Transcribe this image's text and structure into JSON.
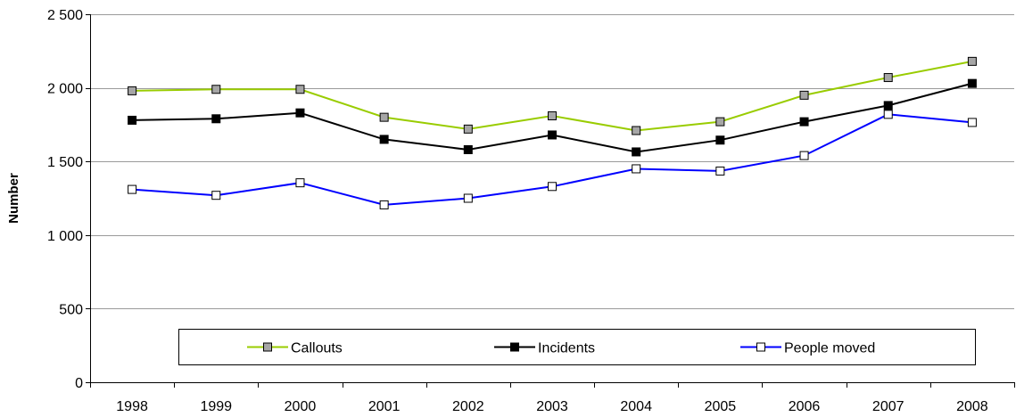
{
  "chart_data": {
    "type": "line",
    "title": "",
    "xlabel": "",
    "ylabel": "Number",
    "x": [
      "1998",
      "1999",
      "2000",
      "2001",
      "2002",
      "2003",
      "2004",
      "2005",
      "2006",
      "2007",
      "2008"
    ],
    "ylim": [
      0,
      2500
    ],
    "yticks": [
      0,
      500,
      1000,
      1500,
      2000,
      2500
    ],
    "ytick_labels": [
      "0",
      "500",
      "1 000",
      "1 500",
      "2 000",
      "2 500"
    ],
    "grid": true,
    "legend_position": "bottom-center",
    "series": [
      {
        "name": "Callouts",
        "values": [
          1980,
          1990,
          1990,
          1800,
          1720,
          1810,
          1710,
          1770,
          1950,
          2070,
          2180
        ],
        "line_color": "#99cc00",
        "marker_fill": "#a6a6a6",
        "marker_stroke": "#000000"
      },
      {
        "name": "Incidents",
        "values": [
          1780,
          1790,
          1830,
          1650,
          1580,
          1680,
          1565,
          1645,
          1770,
          1880,
          2030
        ],
        "line_color": "#000000",
        "marker_fill": "#000000",
        "marker_stroke": "#000000"
      },
      {
        "name": "People moved",
        "values": [
          1310,
          1270,
          1355,
          1205,
          1250,
          1330,
          1450,
          1435,
          1540,
          1820,
          1765
        ],
        "line_color": "#0000ff",
        "marker_fill": "#ffffff",
        "marker_stroke": "#000000"
      }
    ]
  }
}
